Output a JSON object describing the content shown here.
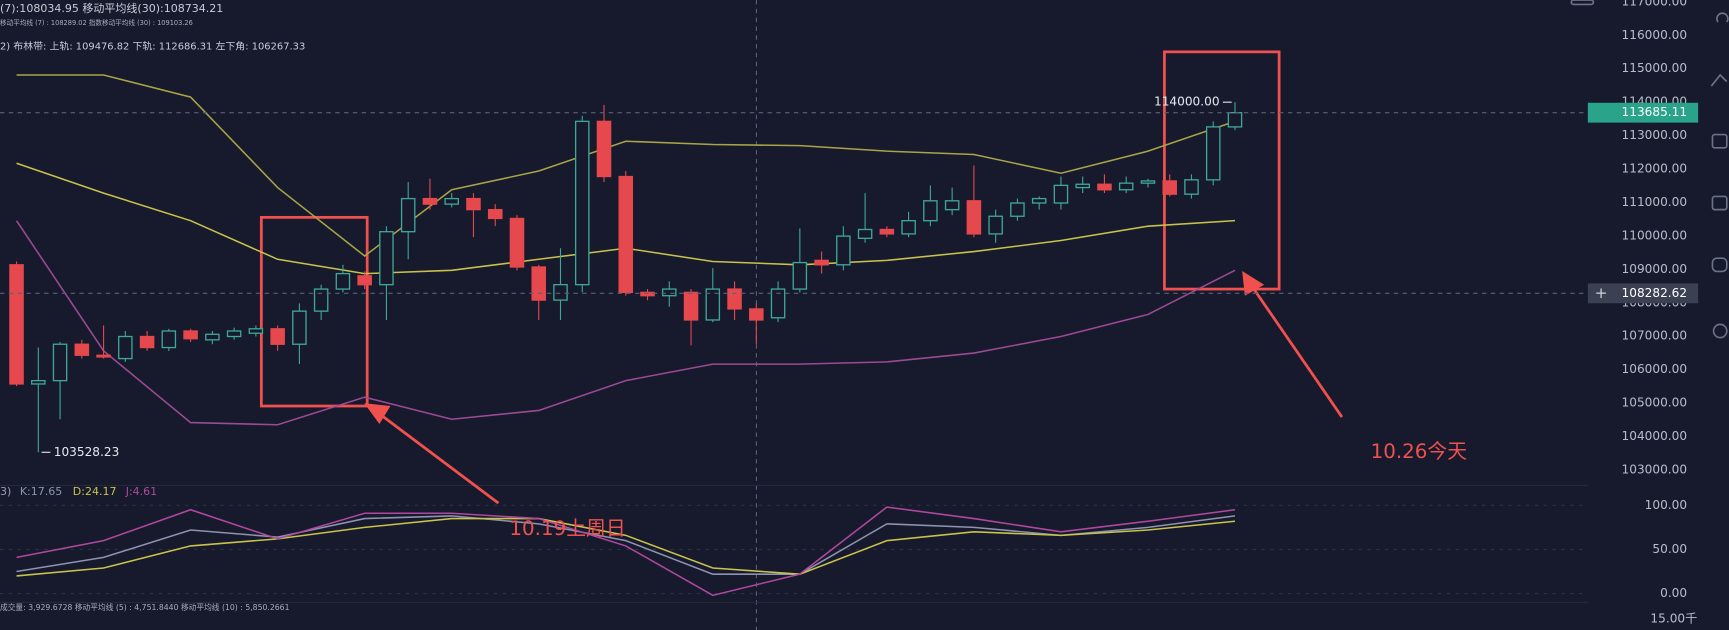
{
  "chart_data": [
    {
      "type": "candlestick",
      "legend_texts": [
        "(7):108034.95 移动平均线(30):108734.21",
        "移动平均线 (7) : 108289.02 指数移动平均线 (30) : 109103.26",
        "2) 布林带:  上轨:  109476.82 下轨:  112686.31 左下角:  106267.33"
      ],
      "open": [
        109136,
        105572,
        105671,
        106760,
        106430,
        106331,
        106991,
        106661,
        107156,
        106892,
        106991,
        107090,
        107222,
        106760,
        107750,
        108410,
        108806,
        108542,
        110126,
        111116,
        110951,
        111116,
        110786,
        110522,
        109070,
        108080,
        108542,
        113426,
        111776,
        108311,
        108212,
        108311,
        107486,
        108410,
        107816,
        107552,
        108410,
        109268,
        109136,
        109928,
        110192,
        110060,
        110456,
        110786,
        111050,
        110060,
        110588,
        110984,
        110984,
        111446,
        111545,
        111380,
        111578,
        111644,
        111248,
        111677,
        113261
      ],
      "high": [
        109235,
        106661,
        106826,
        106892,
        107321,
        107156,
        107156,
        107222,
        107222,
        107156,
        107255,
        107321,
        107321,
        107981,
        108542,
        109136,
        108938,
        110291,
        111611,
        111710,
        111281,
        111281,
        110951,
        110621,
        109136,
        109631,
        113591,
        113921,
        111941,
        108410,
        108641,
        108410,
        109037,
        108641,
        107981,
        108641,
        110225,
        109532,
        110291,
        111281,
        110291,
        110720,
        111512,
        111446,
        112106,
        110786,
        111116,
        111182,
        111776,
        111776,
        111842,
        111776,
        111710,
        111842,
        111842,
        113426,
        114000
      ],
      "low": [
        105506,
        103528.23,
        104516,
        106331,
        106331,
        106232,
        106562,
        106562,
        106826,
        106760,
        106892,
        106991,
        106562,
        106166,
        107486,
        108311,
        108410,
        107486,
        109301,
        110786,
        110852,
        109961,
        110291,
        108971,
        107486,
        107486,
        108311,
        111611,
        108212,
        108080,
        107882,
        106727,
        107420,
        107486,
        106760,
        107420,
        108311,
        108872,
        108971,
        109796,
        109961,
        109961,
        110291,
        110621,
        109961,
        109796,
        110456,
        110786,
        110786,
        111281,
        111281,
        111281,
        111446,
        111182,
        111116,
        111512,
        113162
      ],
      "close": [
        105572,
        105671,
        106760,
        106430,
        106397,
        106991,
        106661,
        107156,
        106925,
        107057,
        107156,
        107222,
        106760,
        107750,
        108410,
        108872,
        108542,
        110126,
        111116,
        110951,
        111116,
        110786,
        110522,
        109070,
        108080,
        108542,
        113426,
        111776,
        108311,
        108212,
        108410,
        107486,
        108410,
        107816,
        107486,
        108410,
        109202,
        109136,
        109994,
        110192,
        110060,
        110456,
        111050,
        111050,
        110060,
        110588,
        110984,
        111116,
        111512,
        111545,
        111380,
        111578,
        111644,
        111248,
        111677,
        113261,
        113685.11
      ],
      "up_color": "#3fa796",
      "down_color": "#e5484d",
      "bands": [
        {
          "color": "#a9a447",
          "values": [
            114812,
            114812,
            114152,
            111446,
            109400,
            111380,
            111941,
            112832,
            112733,
            112700,
            112535,
            112436,
            111875,
            112535,
            113426
          ]
        },
        {
          "color": "#9c4a94",
          "values": [
            110456,
            106562,
            104417,
            104351,
            105176,
            104516,
            104780,
            105671,
            106166,
            106166,
            106232,
            106496,
            106991,
            107651,
            108971
          ]
        },
        {
          "color": "#c8c24c",
          "values": [
            112172,
            111281,
            110456,
            109301,
            108872,
            108971,
            109301,
            109631,
            109235,
            109136,
            109268,
            109532,
            109862,
            110291,
            110456
          ]
        }
      ],
      "ylim": [
        102536,
        117056
      ],
      "yticks": [
        {
          "value": 103000,
          "label": "103000.00"
        },
        {
          "value": 104000,
          "label": "104000.00"
        },
        {
          "value": 105000,
          "label": "105000.00"
        },
        {
          "value": 106000,
          "label": "106000.00"
        },
        {
          "value": 107000,
          "label": "107000.00"
        },
        {
          "value": 108000,
          "label": "108000.00"
        },
        {
          "value": 109000,
          "label": "109000.00"
        },
        {
          "value": 110000,
          "label": "110000.00"
        },
        {
          "value": 111000,
          "label": "111000.00"
        },
        {
          "value": 112000,
          "label": "112000.00"
        },
        {
          "value": 113000,
          "label": "113000.00"
        },
        {
          "value": 114000,
          "label": "114000.00"
        },
        {
          "value": 115000,
          "label": "115000.00"
        },
        {
          "value": 116000,
          "label": "116000.00"
        },
        {
          "value": 117000,
          "label": "117000.00"
        }
      ],
      "high_label": "114000.00",
      "low_label": "103528.23",
      "last_price_label": "113685.11",
      "crosshair": 108282.62,
      "crosshair_label": "108282.62",
      "annotations": [
        "10.19上周日",
        "10.26今天"
      ]
    },
    {
      "type": "line",
      "legend_prefix": "3)",
      "series": [
        {
          "name": "K:17.65",
          "color": "#8d93b0",
          "values": [
            25,
            41,
            72,
            64,
            85,
            88,
            79,
            60,
            22,
            22,
            79,
            75,
            66,
            75,
            88
          ]
        },
        {
          "name": "D:24.17",
          "color": "#c9c24c",
          "values": [
            20,
            29,
            54,
            62,
            75,
            85,
            85,
            66,
            29,
            22,
            60,
            70,
            66,
            72,
            82
          ]
        },
        {
          "name": "J:4.61",
          "color": "#b0489e",
          "values": [
            41,
            60,
            95,
            62,
            91,
            91,
            85,
            54,
            -2,
            22,
            98,
            85,
            70,
            82,
            95
          ]
        }
      ],
      "ylim": [
        -12.5,
        122.5
      ],
      "yticks": [
        {
          "value": 0,
          "label": "0.00"
        },
        {
          "value": 50,
          "label": "50.00"
        },
        {
          "value": 100,
          "label": "100.00"
        }
      ],
      "volume_legend": "成交量: 3,929.6728 移动平均线 (5) : 4,751.8440 移动平均线 (10) : 5,850.2661",
      "volume_tick_label": "15.00千"
    }
  ]
}
